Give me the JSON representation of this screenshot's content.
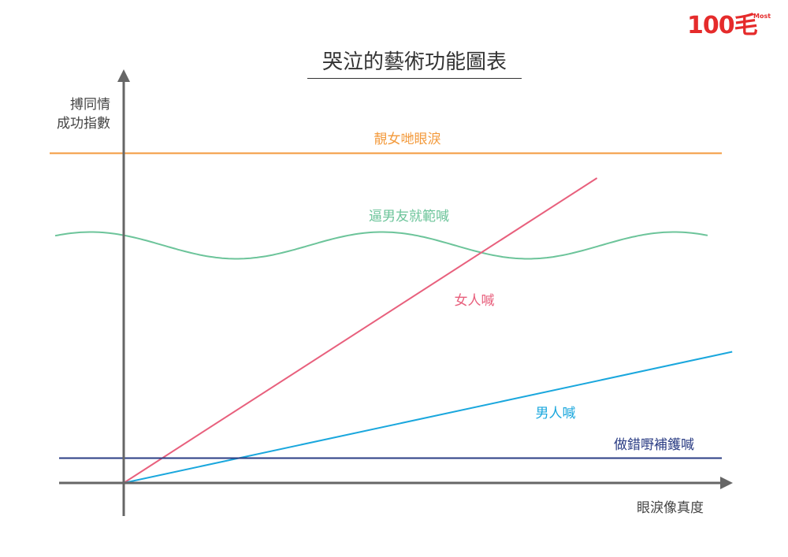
{
  "logo": {
    "text": "100毛",
    "sup": "Most"
  },
  "chart_data": {
    "type": "line",
    "title": "哭泣的藝術功能圖表",
    "xlabel": "眼淚像真度",
    "ylabel": [
      "搏同情",
      "成功指數"
    ],
    "series": [
      {
        "name": "靚女哋眼淚",
        "color": "#f39a3c",
        "kind": "constant",
        "level": 0.93
      },
      {
        "name": "逼男友就範喊",
        "color": "#6cc49a",
        "kind": "wave",
        "level": 0.67
      },
      {
        "name": "女人喊",
        "color": "#e8607d",
        "kind": "linear",
        "points": [
          [
            0,
            0
          ],
          [
            0.77,
            0.86
          ]
        ]
      },
      {
        "name": "男人喊",
        "color": "#1aa7dd",
        "kind": "linear",
        "points": [
          [
            0,
            0
          ],
          [
            0.99,
            0.37
          ]
        ]
      },
      {
        "name": "做錯嘢補鑊喊",
        "color": "#2b3d84",
        "kind": "constant",
        "level": 0.07
      }
    ]
  }
}
